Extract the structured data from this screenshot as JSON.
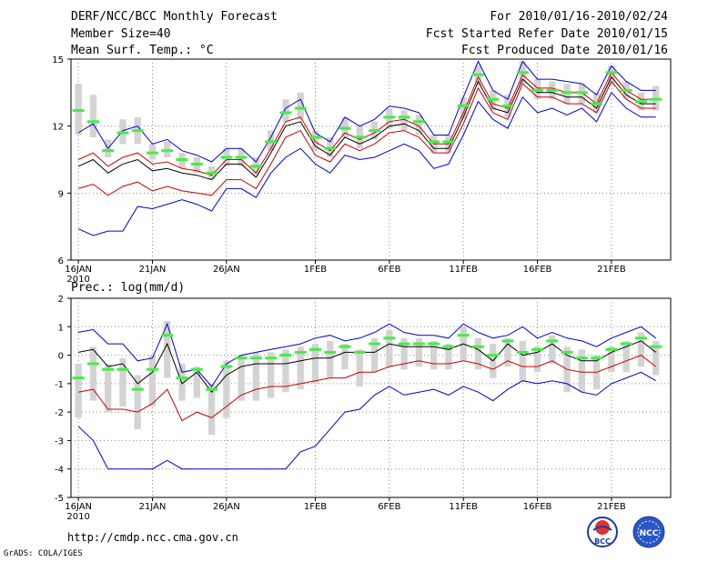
{
  "header": {
    "title": "DERF/NCC/BCC Monthly Forecast",
    "member_size": "Member Size=40",
    "variable": "Mean Surf. Temp.: °C",
    "period": "For 2010/01/16-2010/02/24",
    "started": "Fcst Started Refer Date 2010/01/15",
    "produced": "Fcst Produced Date 2010/01/16"
  },
  "footer": {
    "url": "http://cmdp.ncc.cma.gov.cn",
    "credit": "GrADS: COLA/IGES",
    "logo_bcc": "BCC",
    "logo_ncc": "NCC"
  },
  "colors": {
    "envelope": "#0000cc",
    "mean": "#000000",
    "spread": "#cc0000",
    "box": "#d3d3d3",
    "median": "#44ee44",
    "grid": "#888888"
  },
  "chart_data": [
    {
      "type": "line",
      "title": "Mean Surf. Temp.: °C",
      "xlabel": "",
      "ylabel": "°C",
      "ylim": [
        6,
        15
      ],
      "yticks": [
        6,
        9,
        12,
        15
      ],
      "xticks": [
        {
          "day": 0,
          "label": "16JAN"
        },
        {
          "day": 5,
          "label": "21JAN"
        },
        {
          "day": 10,
          "label": "26JAN"
        },
        {
          "day": 16,
          "label": "1FEB"
        },
        {
          "day": 21,
          "label": "6FEB"
        },
        {
          "day": 26,
          "label": "11FEB"
        },
        {
          "day": 31,
          "label": "16FEB"
        },
        {
          "day": 36,
          "label": "21FEB"
        }
      ],
      "xsub": "2010",
      "days": 40,
      "series": [
        {
          "name": "max",
          "role": "envelope",
          "values": [
            11.7,
            12.1,
            11.0,
            11.8,
            12.0,
            11.2,
            11.4,
            10.9,
            10.7,
            10.4,
            11.0,
            11.0,
            10.4,
            11.5,
            12.8,
            13.2,
            11.7,
            11.3,
            12.4,
            12.0,
            12.3,
            12.9,
            12.8,
            12.6,
            11.6,
            11.6,
            13.3,
            14.9,
            13.6,
            13.2,
            14.9,
            14.1,
            14.1,
            14.0,
            13.9,
            13.4,
            14.7,
            14.0,
            13.6,
            13.6
          ]
        },
        {
          "name": "upper",
          "role": "spread",
          "values": [
            10.5,
            10.8,
            10.2,
            10.6,
            10.8,
            10.3,
            10.4,
            10.1,
            10.0,
            9.8,
            10.5,
            10.5,
            9.9,
            11.0,
            12.2,
            12.4,
            11.3,
            10.9,
            11.7,
            11.4,
            11.7,
            12.2,
            12.3,
            12.0,
            11.2,
            11.2,
            12.6,
            14.2,
            13.0,
            12.8,
            14.3,
            13.7,
            13.7,
            13.5,
            13.5,
            13.0,
            14.4,
            13.6,
            13.2,
            13.2
          ]
        },
        {
          "name": "mean",
          "role": "mean",
          "values": [
            10.2,
            10.5,
            9.9,
            10.3,
            10.5,
            10.0,
            10.1,
            9.9,
            9.8,
            9.6,
            10.3,
            10.3,
            9.7,
            10.8,
            12.0,
            12.2,
            11.1,
            10.7,
            11.5,
            11.2,
            11.5,
            12.0,
            12.1,
            11.8,
            11.0,
            11.0,
            12.4,
            14.0,
            12.8,
            12.6,
            14.1,
            13.5,
            13.5,
            13.3,
            13.3,
            12.8,
            14.2,
            13.4,
            13.0,
            13.0
          ]
        },
        {
          "name": "lower",
          "role": "spread",
          "values": [
            9.2,
            9.4,
            8.9,
            9.3,
            9.5,
            9.1,
            9.3,
            9.1,
            9.0,
            8.9,
            9.6,
            9.6,
            9.2,
            10.3,
            11.5,
            11.8,
            10.7,
            10.4,
            11.2,
            10.9,
            11.2,
            11.7,
            11.8,
            11.5,
            10.8,
            10.8,
            12.1,
            13.7,
            12.6,
            12.3,
            13.9,
            13.3,
            13.3,
            13.0,
            13.0,
            12.6,
            14.0,
            13.2,
            12.8,
            12.8
          ]
        },
        {
          "name": "min",
          "role": "envelope",
          "values": [
            7.4,
            7.1,
            7.3,
            7.3,
            8.4,
            8.3,
            8.5,
            8.7,
            8.5,
            8.2,
            9.2,
            9.2,
            8.8,
            9.9,
            10.6,
            11.0,
            10.3,
            9.9,
            10.7,
            10.5,
            10.6,
            10.9,
            11.2,
            10.9,
            10.1,
            10.3,
            11.6,
            13.1,
            12.3,
            11.9,
            13.3,
            12.6,
            12.8,
            12.5,
            12.8,
            12.2,
            13.5,
            12.8,
            12.4,
            12.4
          ]
        }
      ],
      "boxes": [
        [
          11.6,
          13.9
        ],
        [
          11.5,
          13.4
        ],
        [
          10.6,
          11.4
        ],
        [
          11.2,
          12.3
        ],
        [
          11.2,
          12.4
        ],
        [
          10.5,
          11.2
        ],
        [
          10.6,
          11.3
        ],
        [
          10.1,
          10.8
        ],
        [
          9.9,
          10.6
        ],
        [
          9.6,
          10.2
        ],
        [
          10.2,
          11.0
        ],
        [
          10.2,
          11.0
        ],
        [
          9.8,
          10.6
        ],
        [
          10.9,
          11.8
        ],
        [
          12.2,
          13.2
        ],
        [
          12.3,
          13.5
        ],
        [
          10.9,
          11.8
        ],
        [
          10.6,
          11.5
        ],
        [
          11.5,
          12.4
        ],
        [
          11.0,
          12.0
        ],
        [
          11.4,
          12.2
        ],
        [
          11.9,
          12.8
        ],
        [
          11.8,
          12.7
        ],
        [
          11.6,
          12.5
        ],
        [
          10.8,
          11.6
        ],
        [
          10.8,
          11.6
        ],
        [
          12.3,
          13.3
        ],
        [
          13.8,
          14.7
        ],
        [
          12.7,
          13.6
        ],
        [
          12.4,
          13.4
        ],
        [
          13.9,
          14.9
        ],
        [
          13.2,
          14.1
        ],
        [
          13.2,
          14.0
        ],
        [
          13.0,
          13.9
        ],
        [
          13.0,
          13.9
        ],
        [
          12.6,
          13.5
        ],
        [
          13.8,
          14.7
        ],
        [
          13.2,
          14.0
        ],
        [
          12.7,
          13.5
        ],
        [
          12.7,
          13.8
        ]
      ],
      "medians": [
        12.7,
        12.2,
        10.9,
        11.7,
        11.8,
        10.8,
        10.9,
        10.5,
        10.3,
        9.9,
        10.6,
        10.6,
        10.2,
        11.3,
        12.6,
        12.8,
        11.5,
        11.0,
        11.9,
        11.5,
        11.8,
        12.4,
        12.4,
        12.2,
        11.3,
        11.3,
        12.9,
        14.3,
        13.2,
        12.9,
        14.4,
        13.6,
        13.6,
        13.5,
        13.5,
        13.0,
        14.4,
        13.6,
        13.1,
        13.2
      ]
    },
    {
      "type": "line",
      "title": "Prec.: log(mm/d)",
      "xlabel": "",
      "ylabel": "log(mm/d)",
      "ylim": [
        -5,
        2
      ],
      "yticks": [
        -5,
        -4,
        -3,
        -2,
        -1,
        0,
        1,
        2
      ],
      "xticks": [
        {
          "day": 0,
          "label": "16JAN"
        },
        {
          "day": 5,
          "label": "21JAN"
        },
        {
          "day": 10,
          "label": "26JAN"
        },
        {
          "day": 16,
          "label": "1FEB"
        },
        {
          "day": 21,
          "label": "6FEB"
        },
        {
          "day": 26,
          "label": "11FEB"
        },
        {
          "day": 31,
          "label": "16FEB"
        },
        {
          "day": 36,
          "label": "21FEB"
        }
      ],
      "xsub": "2010",
      "days": 40,
      "series": [
        {
          "name": "max",
          "role": "envelope",
          "values": [
            0.8,
            0.9,
            0.4,
            0.4,
            -0.2,
            -0.1,
            1.1,
            -0.6,
            -0.5,
            -1.1,
            -0.3,
            0.0,
            0.1,
            0.2,
            0.3,
            0.4,
            0.6,
            0.7,
            0.5,
            0.6,
            0.8,
            1.1,
            0.8,
            0.7,
            0.7,
            0.6,
            1.1,
            0.8,
            0.6,
            0.7,
            1.0,
            0.6,
            0.8,
            0.6,
            0.5,
            0.3,
            0.6,
            0.8,
            1.0,
            0.6
          ]
        },
        {
          "name": "mean",
          "role": "mean",
          "values": [
            0.1,
            0.2,
            -0.4,
            -0.3,
            -1.0,
            -0.6,
            0.4,
            -1.0,
            -0.6,
            -1.3,
            -0.7,
            -0.4,
            -0.3,
            -0.3,
            -0.3,
            -0.2,
            -0.1,
            -0.1,
            0.1,
            0.1,
            0.1,
            0.4,
            0.3,
            0.3,
            0.3,
            0.2,
            0.4,
            0.2,
            -0.2,
            0.4,
            0.0,
            0.1,
            0.4,
            0.0,
            -0.2,
            -0.2,
            0.1,
            0.3,
            0.5,
            0.1
          ]
        },
        {
          "name": "lower",
          "role": "spread",
          "values": [
            -1.3,
            -1.2,
            -1.9,
            -1.9,
            -2.0,
            -1.7,
            -1.2,
            -2.3,
            -2.0,
            -2.2,
            -1.8,
            -1.4,
            -1.2,
            -1.1,
            -1.1,
            -1.0,
            -0.9,
            -0.8,
            -0.8,
            -0.6,
            -0.6,
            -0.4,
            -0.3,
            -0.2,
            -0.3,
            -0.3,
            -0.2,
            -0.3,
            -0.5,
            -0.2,
            -0.4,
            -0.4,
            -0.2,
            -0.5,
            -0.6,
            -0.6,
            -0.4,
            -0.2,
            0.0,
            -0.4
          ]
        },
        {
          "name": "min",
          "role": "envelope",
          "values": [
            -2.5,
            -3.0,
            -4.0,
            -4.0,
            -4.0,
            -4.0,
            -3.7,
            -4.0,
            -4.0,
            -4.0,
            -4.0,
            -4.0,
            -4.0,
            -4.0,
            -4.0,
            -3.4,
            -3.2,
            -2.6,
            -2.0,
            -1.9,
            -1.4,
            -1.1,
            -1.4,
            -1.3,
            -1.2,
            -1.4,
            -1.1,
            -1.3,
            -1.6,
            -1.2,
            -0.9,
            -1.0,
            -0.9,
            -1.0,
            -1.3,
            -1.4,
            -1.0,
            -0.8,
            -0.6,
            -0.9
          ]
        }
      ],
      "boxes": [
        [
          -2.2,
          -0.3
        ],
        [
          -1.6,
          0.3
        ],
        [
          -2.0,
          -0.3
        ],
        [
          -1.8,
          -0.1
        ],
        [
          -2.6,
          -0.7
        ],
        [
          -1.8,
          0.0
        ],
        [
          -0.8,
          1.2
        ],
        [
          -1.6,
          -0.3
        ],
        [
          -1.5,
          -0.4
        ],
        [
          -2.8,
          -1.0
        ],
        [
          -2.2,
          -0.2
        ],
        [
          -1.6,
          0.0
        ],
        [
          -1.6,
          0.1
        ],
        [
          -1.5,
          0.1
        ],
        [
          -1.3,
          0.2
        ],
        [
          -1.2,
          0.3
        ],
        [
          -1.0,
          0.4
        ],
        [
          -0.8,
          0.5
        ],
        [
          -0.5,
          0.4
        ],
        [
          -1.1,
          0.2
        ],
        [
          -0.6,
          0.6
        ],
        [
          -0.4,
          0.9
        ],
        [
          -0.5,
          0.6
        ],
        [
          -0.4,
          0.6
        ],
        [
          -0.5,
          0.5
        ],
        [
          -0.5,
          0.4
        ],
        [
          -0.2,
          1.0
        ],
        [
          -0.5,
          0.6
        ],
        [
          -0.8,
          0.4
        ],
        [
          -0.4,
          0.6
        ],
        [
          -0.9,
          0.5
        ],
        [
          -0.6,
          0.3
        ],
        [
          -0.3,
          0.7
        ],
        [
          -1.3,
          0.3
        ],
        [
          -1.3,
          0.2
        ],
        [
          -1.2,
          0.0
        ],
        [
          -0.6,
          0.3
        ],
        [
          -0.6,
          0.5
        ],
        [
          -0.4,
          0.8
        ],
        [
          -0.7,
          0.5
        ]
      ],
      "medians": [
        -0.8,
        -0.3,
        -0.5,
        -0.5,
        -1.2,
        -0.5,
        0.7,
        -0.8,
        -0.5,
        -1.2,
        -0.4,
        -0.1,
        -0.1,
        -0.1,
        0.0,
        0.1,
        0.2,
        0.1,
        0.3,
        0.1,
        0.4,
        0.6,
        0.4,
        0.4,
        0.4,
        0.3,
        0.7,
        0.3,
        0.0,
        0.5,
        0.1,
        0.2,
        0.5,
        0.1,
        -0.1,
        -0.1,
        0.2,
        0.4,
        0.6,
        0.3
      ]
    }
  ]
}
